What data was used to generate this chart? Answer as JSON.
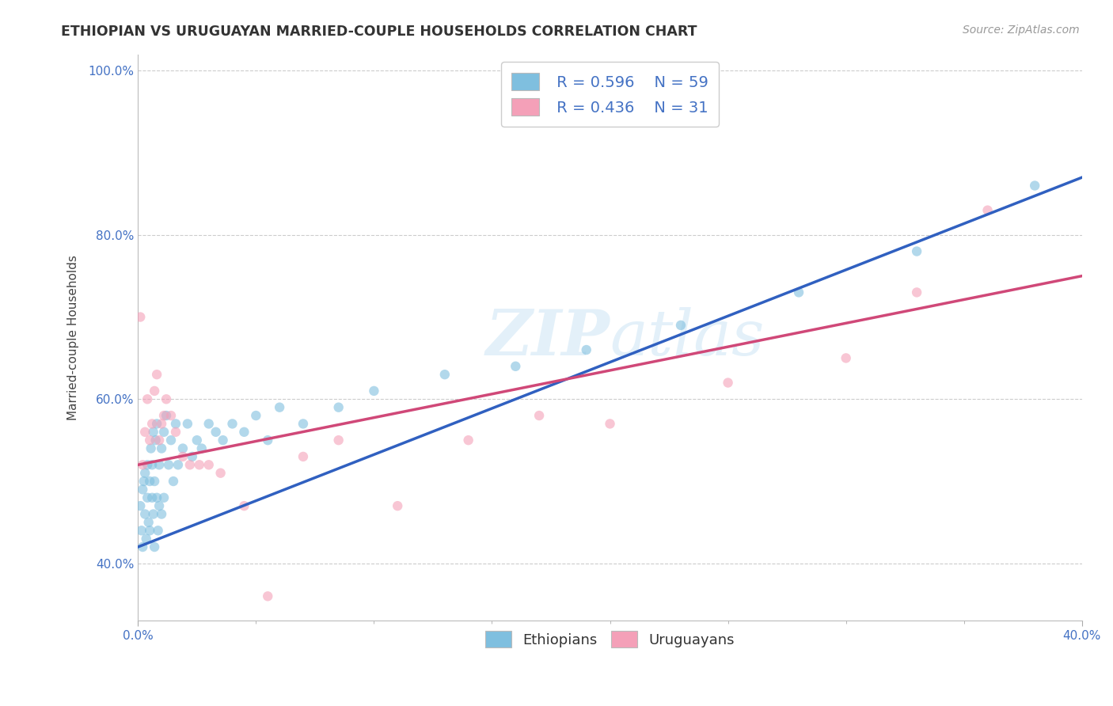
{
  "title": "ETHIOPIAN VS URUGUAYAN MARRIED-COUPLE HOUSEHOLDS CORRELATION CHART",
  "source": "Source: ZipAtlas.com",
  "ylabel": "Married-couple Households",
  "xlim": [
    0.0,
    40.0
  ],
  "ylim": [
    33.0,
    102.0
  ],
  "yticks": [
    40.0,
    60.0,
    80.0,
    100.0
  ],
  "ytick_labels": [
    "40.0%",
    "60.0%",
    "80.0%",
    "100.0%"
  ],
  "watermark": "ZIPAtlas",
  "legend_r1": "R = 0.596",
  "legend_n1": "N = 59",
  "legend_r2": "R = 0.436",
  "legend_n2": "N = 31",
  "blue_color": "#7fbfdf",
  "pink_color": "#f4a0b8",
  "blue_line_color": "#3060c0",
  "pink_line_color": "#d04878",
  "background_color": "#ffffff",
  "blue_line_x0": 0.0,
  "blue_line_y0": 42.0,
  "blue_line_x1": 40.0,
  "blue_line_y1": 87.0,
  "pink_line_x0": 0.0,
  "pink_line_y0": 52.0,
  "pink_line_x1": 40.0,
  "pink_line_y1": 75.0,
  "blue_scatter_x": [
    0.1,
    0.15,
    0.2,
    0.2,
    0.25,
    0.3,
    0.3,
    0.35,
    0.4,
    0.4,
    0.45,
    0.5,
    0.5,
    0.55,
    0.6,
    0.6,
    0.65,
    0.65,
    0.7,
    0.7,
    0.75,
    0.8,
    0.8,
    0.85,
    0.9,
    0.9,
    1.0,
    1.0,
    1.1,
    1.1,
    1.2,
    1.3,
    1.4,
    1.5,
    1.6,
    1.7,
    1.9,
    2.1,
    2.3,
    2.5,
    2.7,
    3.0,
    3.3,
    3.6,
    4.0,
    4.5,
    5.0,
    5.5,
    6.0,
    7.0,
    8.5,
    10.0,
    13.0,
    16.0,
    19.0,
    23.0,
    28.0,
    33.0,
    38.0
  ],
  "blue_scatter_y": [
    47,
    44,
    49,
    42,
    50,
    46,
    51,
    43,
    48,
    52,
    45,
    50,
    44,
    54,
    48,
    52,
    46,
    56,
    50,
    42,
    55,
    48,
    57,
    44,
    52,
    47,
    54,
    46,
    56,
    48,
    58,
    52,
    55,
    50,
    57,
    52,
    54,
    57,
    53,
    55,
    54,
    57,
    56,
    55,
    57,
    56,
    58,
    55,
    59,
    57,
    59,
    61,
    63,
    64,
    66,
    69,
    73,
    78,
    86
  ],
  "pink_scatter_x": [
    0.1,
    0.2,
    0.3,
    0.4,
    0.5,
    0.6,
    0.7,
    0.8,
    0.9,
    1.0,
    1.1,
    1.2,
    1.4,
    1.6,
    1.9,
    2.2,
    2.6,
    3.0,
    3.5,
    4.5,
    5.5,
    7.0,
    8.5,
    11.0,
    14.0,
    17.0,
    20.0,
    25.0,
    30.0,
    33.0,
    36.0
  ],
  "pink_scatter_y": [
    70,
    52,
    56,
    60,
    55,
    57,
    61,
    63,
    55,
    57,
    58,
    60,
    58,
    56,
    53,
    52,
    52,
    52,
    51,
    47,
    36,
    53,
    55,
    47,
    55,
    58,
    57,
    62,
    65,
    73,
    83
  ]
}
